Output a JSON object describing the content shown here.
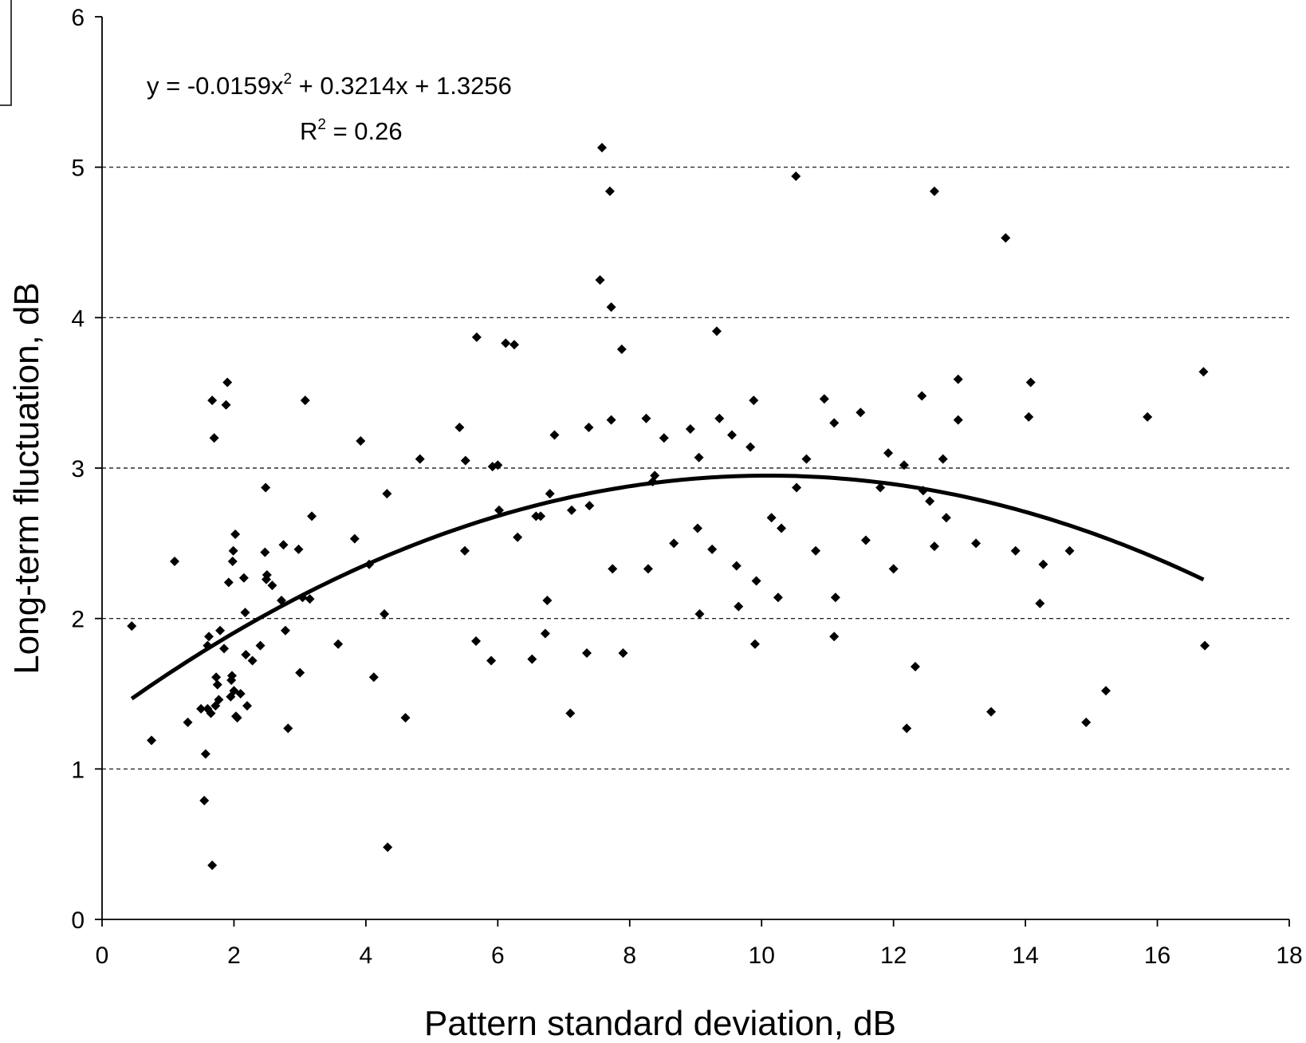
{
  "chart_data": {
    "type": "scatter",
    "xlabel": "Pattern standard deviation, dB",
    "ylabel": "Long-term fluctuation, dB",
    "xlim": [
      0,
      18
    ],
    "ylim": [
      0,
      6
    ],
    "xticks": [
      "0",
      "2",
      "4",
      "6",
      "8",
      "10",
      "12",
      "14",
      "16",
      "18"
    ],
    "yticks": [
      "0",
      "1",
      "2",
      "3",
      "4",
      "5",
      "6"
    ],
    "grid": "horizontal dashed",
    "trendline": {
      "type": "polynomial",
      "a": -0.0159,
      "b": 0.3214,
      "c": 1.3256,
      "x_range": [
        0.45,
        16.7
      ],
      "equation_prefix": "y = -0.0159x",
      "equation_exp": "2",
      "equation_suffix": " + 0.3214x + 1.3256",
      "r2_prefix": "R",
      "r2_exp": "2",
      "r2_suffix": " = 0.26"
    },
    "colors": {
      "marker": "#000000",
      "trendline": "#000000",
      "grid": "#000000"
    },
    "points": [
      [
        0.45,
        1.95
      ],
      [
        0.75,
        1.19
      ],
      [
        1.1,
        2.38
      ],
      [
        1.3,
        1.31
      ],
      [
        1.5,
        1.4
      ],
      [
        1.55,
        0.79
      ],
      [
        1.57,
        1.1
      ],
      [
        1.6,
        1.4
      ],
      [
        1.6,
        1.82
      ],
      [
        1.62,
        1.88
      ],
      [
        1.65,
        1.37
      ],
      [
        1.67,
        0.36
      ],
      [
        1.67,
        3.45
      ],
      [
        1.7,
        3.2
      ],
      [
        1.72,
        1.42
      ],
      [
        1.73,
        1.61
      ],
      [
        1.75,
        1.56
      ],
      [
        1.77,
        1.46
      ],
      [
        1.79,
        1.92
      ],
      [
        1.85,
        1.8
      ],
      [
        1.88,
        3.42
      ],
      [
        1.9,
        3.57
      ],
      [
        1.92,
        2.24
      ],
      [
        1.95,
        1.48
      ],
      [
        1.96,
        1.59
      ],
      [
        1.97,
        1.62
      ],
      [
        1.98,
        2.38
      ],
      [
        1.99,
        2.45
      ],
      [
        2.0,
        1.52
      ],
      [
        2.02,
        2.56
      ],
      [
        2.03,
        1.35
      ],
      [
        2.05,
        1.34
      ],
      [
        2.1,
        1.5
      ],
      [
        2.15,
        2.27
      ],
      [
        2.17,
        2.04
      ],
      [
        2.18,
        1.76
      ],
      [
        2.2,
        1.42
      ],
      [
        2.28,
        1.72
      ],
      [
        2.4,
        1.82
      ],
      [
        2.47,
        2.44
      ],
      [
        2.48,
        2.87
      ],
      [
        2.49,
        2.26
      ],
      [
        2.5,
        2.29
      ],
      [
        2.58,
        2.22
      ],
      [
        2.72,
        2.12
      ],
      [
        2.75,
        2.49
      ],
      [
        2.78,
        1.92
      ],
      [
        2.82,
        1.27
      ],
      [
        2.98,
        2.46
      ],
      [
        3.0,
        1.64
      ],
      [
        3.04,
        2.14
      ],
      [
        3.08,
        3.45
      ],
      [
        3.15,
        2.13
      ],
      [
        3.18,
        2.68
      ],
      [
        3.58,
        1.83
      ],
      [
        3.83,
        2.53
      ],
      [
        3.92,
        3.18
      ],
      [
        4.05,
        2.36
      ],
      [
        4.12,
        1.61
      ],
      [
        4.28,
        2.03
      ],
      [
        4.32,
        2.83
      ],
      [
        4.33,
        0.48
      ],
      [
        4.6,
        1.34
      ],
      [
        4.82,
        3.06
      ],
      [
        5.42,
        3.27
      ],
      [
        5.5,
        2.45
      ],
      [
        5.51,
        3.05
      ],
      [
        5.67,
        1.85
      ],
      [
        5.68,
        3.87
      ],
      [
        5.9,
        1.72
      ],
      [
        5.92,
        3.01
      ],
      [
        6.0,
        3.02
      ],
      [
        6.02,
        2.72
      ],
      [
        6.12,
        3.83
      ],
      [
        6.25,
        3.82
      ],
      [
        6.3,
        2.54
      ],
      [
        6.52,
        1.73
      ],
      [
        6.58,
        2.68
      ],
      [
        6.65,
        2.68
      ],
      [
        6.72,
        1.9
      ],
      [
        6.75,
        2.12
      ],
      [
        6.79,
        2.83
      ],
      [
        6.86,
        3.22
      ],
      [
        7.1,
        1.37
      ],
      [
        7.12,
        2.72
      ],
      [
        7.35,
        1.77
      ],
      [
        7.38,
        3.27
      ],
      [
        7.39,
        2.75
      ],
      [
        7.55,
        4.25
      ],
      [
        7.58,
        5.13
      ],
      [
        7.7,
        4.84
      ],
      [
        7.72,
        3.32
      ],
      [
        7.72,
        4.07
      ],
      [
        7.74,
        2.33
      ],
      [
        7.88,
        3.79
      ],
      [
        7.9,
        1.77
      ],
      [
        8.25,
        3.33
      ],
      [
        8.28,
        2.33
      ],
      [
        8.35,
        2.91
      ],
      [
        8.38,
        2.95
      ],
      [
        8.52,
        3.2
      ],
      [
        8.67,
        2.5
      ],
      [
        8.92,
        3.26
      ],
      [
        9.03,
        2.6
      ],
      [
        9.05,
        3.07
      ],
      [
        9.06,
        2.03
      ],
      [
        9.25,
        2.46
      ],
      [
        9.32,
        3.91
      ],
      [
        9.36,
        3.33
      ],
      [
        9.55,
        3.22
      ],
      [
        9.62,
        2.35
      ],
      [
        9.65,
        2.08
      ],
      [
        9.83,
        3.14
      ],
      [
        9.88,
        3.45
      ],
      [
        9.9,
        1.83
      ],
      [
        9.92,
        2.25
      ],
      [
        10.15,
        2.67
      ],
      [
        10.25,
        2.14
      ],
      [
        10.3,
        2.6
      ],
      [
        10.52,
        4.94
      ],
      [
        10.53,
        2.87
      ],
      [
        10.68,
        3.06
      ],
      [
        10.82,
        2.45
      ],
      [
        10.95,
        3.46
      ],
      [
        11.1,
        1.88
      ],
      [
        11.1,
        3.3
      ],
      [
        11.12,
        2.14
      ],
      [
        11.5,
        3.37
      ],
      [
        11.58,
        2.52
      ],
      [
        11.8,
        2.87
      ],
      [
        11.92,
        3.1
      ],
      [
        12.0,
        2.33
      ],
      [
        12.16,
        3.02
      ],
      [
        12.2,
        1.27
      ],
      [
        12.33,
        1.68
      ],
      [
        12.43,
        3.48
      ],
      [
        12.45,
        2.85
      ],
      [
        12.55,
        2.78
      ],
      [
        12.62,
        4.84
      ],
      [
        12.62,
        2.48
      ],
      [
        12.75,
        3.06
      ],
      [
        12.8,
        2.67
      ],
      [
        12.98,
        3.59
      ],
      [
        12.98,
        3.32
      ],
      [
        13.25,
        2.5
      ],
      [
        13.48,
        1.38
      ],
      [
        13.7,
        4.53
      ],
      [
        13.85,
        2.45
      ],
      [
        14.05,
        3.34
      ],
      [
        14.08,
        3.57
      ],
      [
        14.22,
        2.1
      ],
      [
        14.27,
        2.36
      ],
      [
        14.67,
        2.45
      ],
      [
        14.92,
        1.31
      ],
      [
        15.22,
        1.52
      ],
      [
        15.85,
        3.34
      ],
      [
        16.7,
        3.64
      ],
      [
        16.72,
        1.82
      ]
    ]
  }
}
